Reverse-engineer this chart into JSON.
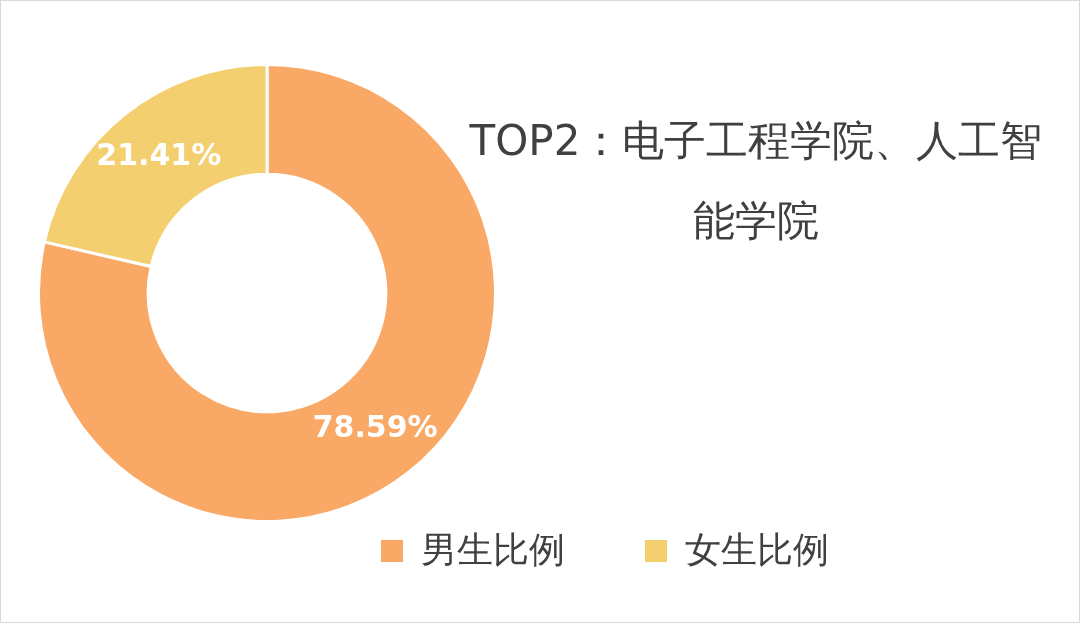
{
  "chart_data": {
    "type": "donut",
    "title": "TOP2：电子工程学院、人工智能学院",
    "categories": [
      "男生比例",
      "女生比例"
    ],
    "values": [
      78.59,
      21.41
    ],
    "colors": [
      "#f9a866",
      "#f4cf6f"
    ],
    "value_labels": [
      "78.59%",
      "21.41%"
    ],
    "legend": "bottom"
  }
}
